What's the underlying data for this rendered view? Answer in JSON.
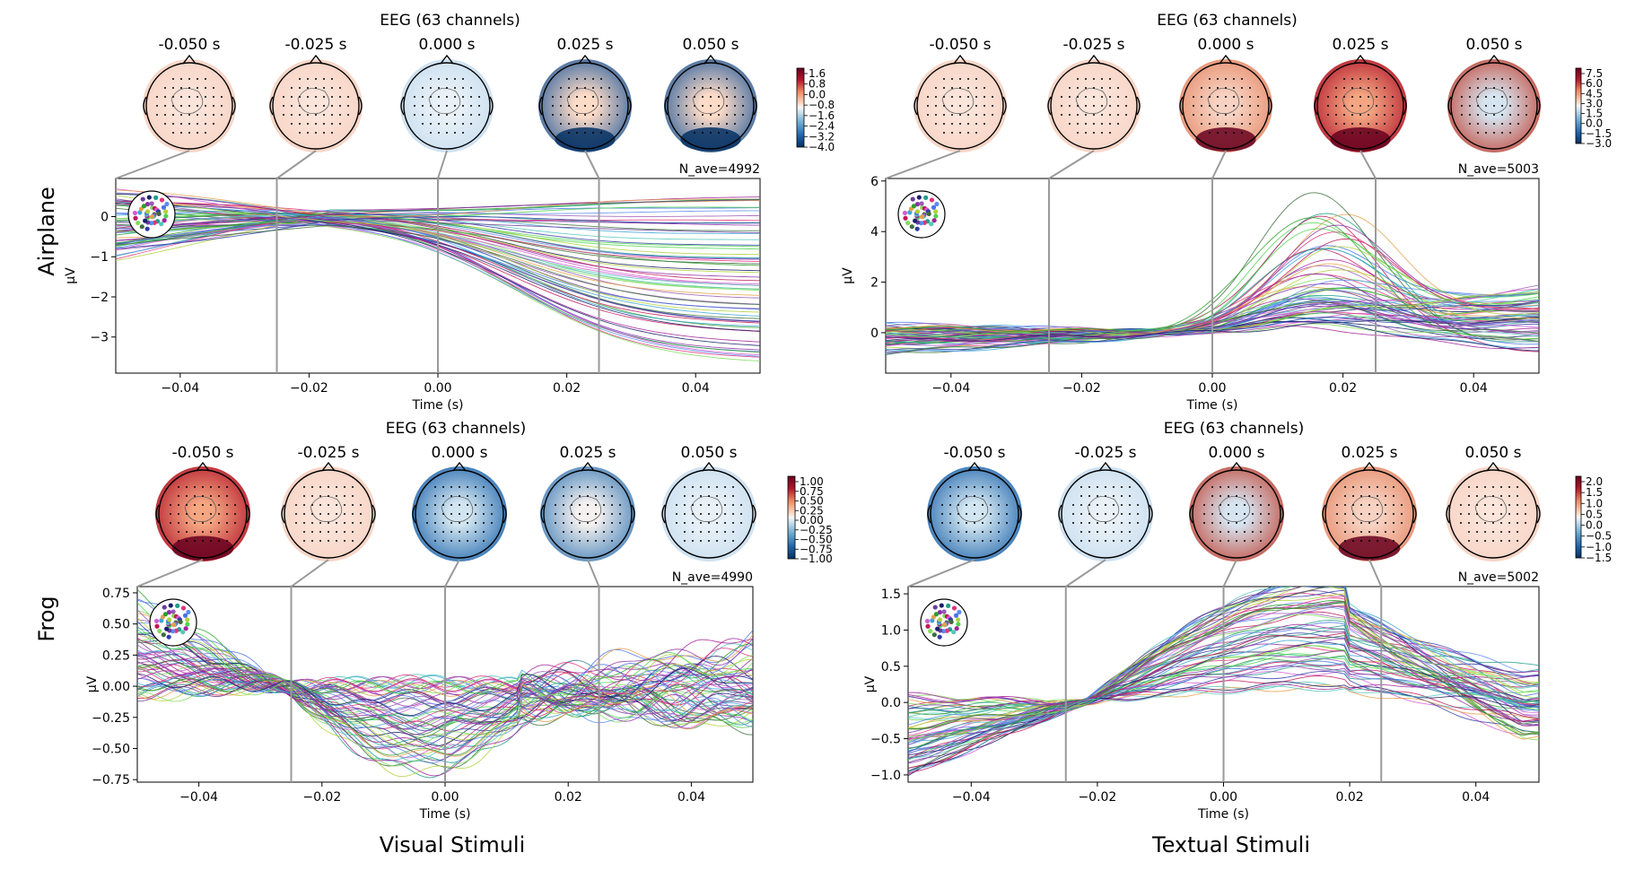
{
  "figure": {
    "row_labels": [
      "Airplane",
      "Frog"
    ],
    "column_labels": [
      "Visual Stimuli",
      "Textual Stimuli"
    ]
  },
  "chart_data": [
    {
      "type": "line",
      "title": "EEG (63 channels)",
      "xlabel": "Time (s)",
      "ylabel": "µV",
      "nave": "N_ave=4992",
      "n_channels": 63,
      "xlim": [
        -0.05,
        0.05
      ],
      "ylim": [
        -3.9,
        0.95
      ],
      "x_ticks": [
        "−0.04",
        "−0.02",
        "0.00",
        "0.02",
        "0.04"
      ],
      "y_ticks": [
        0,
        -1,
        -2,
        -3
      ],
      "y_tick_labels": [
        "0",
        "−1",
        "−2",
        "−3"
      ],
      "topomap_times": [
        "-0.050 s",
        "-0.025 s",
        "0.000 s",
        "0.025 s",
        "0.050 s"
      ],
      "topomap_pattern": [
        "slight-pos",
        "slight-pos",
        "slight-neg",
        "neg-strong-bottom",
        "neg-strong-bottom"
      ],
      "colorbar_ticks": [
        "1.6",
        "0.8",
        "0.0",
        "−0.8",
        "−1.6",
        "−2.4",
        "−3.2",
        "−4.0"
      ],
      "colorbar_range": [
        -4.0,
        2.0
      ],
      "series_shape": "diverge-down",
      "series_params": {
        "start": [
          -0.95,
          0.6
        ],
        "end": [
          -3.7,
          0.5
        ],
        "knot": [
          0.02,
          0.2
        ],
        "late": 0.6
      },
      "grid": false
    },
    {
      "type": "line",
      "title": "EEG (63 channels)",
      "xlabel": "Time (s)",
      "ylabel": "µV",
      "nave": "N_ave=5003",
      "n_channels": 63,
      "xlim": [
        -0.05,
        0.05
      ],
      "ylim": [
        -1.6,
        6.1
      ],
      "x_ticks": [
        "−0.04",
        "−0.02",
        "0.00",
        "0.02",
        "0.04"
      ],
      "y_ticks": [
        6,
        4,
        2,
        0
      ],
      "y_tick_labels": [
        "6",
        "4",
        "2",
        "0"
      ],
      "topomap_times": [
        "-0.050 s",
        "-0.025 s",
        "0.000 s",
        "0.025 s",
        "0.050 s"
      ],
      "topomap_pattern": [
        "slight-pos",
        "slight-pos",
        "pos-bottom",
        "pos-strong-bottom",
        "pos-strong"
      ],
      "colorbar_ticks": [
        "7.5",
        "6.0",
        "4.5",
        "3.0",
        "1.5",
        "0.0",
        "−1.5",
        "−3.0"
      ],
      "colorbar_range": [
        -3.0,
        7.5
      ],
      "series_shape": "peak",
      "series_params": {
        "start": [
          -1.5,
          0.6
        ],
        "peak_t": [
          0.014,
          0.02
        ],
        "peak": [
          0.3,
          5.7
        ],
        "end": [
          -1.0,
          1.8
        ]
      },
      "grid": false
    },
    {
      "type": "line",
      "title": "EEG (63 channels)",
      "xlabel": "Time (s)",
      "ylabel": "µV",
      "nave": "N_ave=4990",
      "n_channels": 63,
      "xlim": [
        -0.05,
        0.05
      ],
      "ylim": [
        -0.77,
        0.8
      ],
      "x_ticks": [
        "−0.04",
        "−0.02",
        "0.00",
        "0.02",
        "0.04"
      ],
      "y_ticks": [
        0.75,
        0.5,
        0.25,
        0.0,
        -0.25,
        -0.5,
        -0.75
      ],
      "y_tick_labels": [
        "0.75",
        "0.50",
        "0.25",
        "0.00",
        "−0.25",
        "−0.50",
        "−0.75"
      ],
      "topomap_times": [
        "-0.050 s",
        "-0.025 s",
        "0.000 s",
        "0.025 s",
        "0.050 s"
      ],
      "topomap_pattern": [
        "pos-strong-bottom",
        "slight-pos",
        "neg-strong",
        "neg-left",
        "slight-neg"
      ],
      "colorbar_ticks": [
        "1.00",
        "0.75",
        "0.50",
        "0.25",
        "0.00",
        "−0.25",
        "−0.50",
        "−0.75",
        "−1.00"
      ],
      "colorbar_range": [
        -1.0,
        1.0
      ],
      "series_shape": "cross-osc",
      "series_params": {
        "start": [
          -0.1,
          0.75
        ],
        "cross_t": -0.026,
        "trough": [
          -0.7,
          0.05
        ],
        "late": [
          -0.4,
          0.55
        ]
      },
      "grid": false
    },
    {
      "type": "line",
      "title": "EEG (63 channels)",
      "xlabel": "Time (s)",
      "ylabel": "µV",
      "nave": "N_ave=5002",
      "n_channels": 63,
      "xlim": [
        -0.05,
        0.05
      ],
      "ylim": [
        -1.1,
        1.6
      ],
      "x_ticks": [
        "−0.04",
        "−0.02",
        "0.00",
        "0.02",
        "0.04"
      ],
      "y_ticks": [
        1.5,
        1.0,
        0.5,
        0.0,
        -0.5,
        -1.0
      ],
      "y_tick_labels": [
        "1.5",
        "1.0",
        "0.5",
        "0.0",
        "−0.5",
        "−1.0"
      ],
      "topomap_times": [
        "-0.050 s",
        "-0.025 s",
        "0.000 s",
        "0.025 s",
        "0.050 s"
      ],
      "topomap_pattern": [
        "neg-strong",
        "slight-neg",
        "pos-strong",
        "pos-bottom",
        "slight-pos"
      ],
      "colorbar_ticks": [
        "2.0",
        "1.5",
        "1.0",
        "0.5",
        "0.0",
        "−0.5",
        "−1.0",
        "−1.5"
      ],
      "colorbar_range": [
        -1.5,
        2.0
      ],
      "series_shape": "cross-peak",
      "series_params": {
        "start": [
          -1.05,
          0.1
        ],
        "cross_t": -0.022,
        "peak_t": 0.0,
        "peak": [
          0.1,
          1.45
        ],
        "end": [
          -0.5,
          0.5
        ]
      },
      "grid": false
    }
  ]
}
